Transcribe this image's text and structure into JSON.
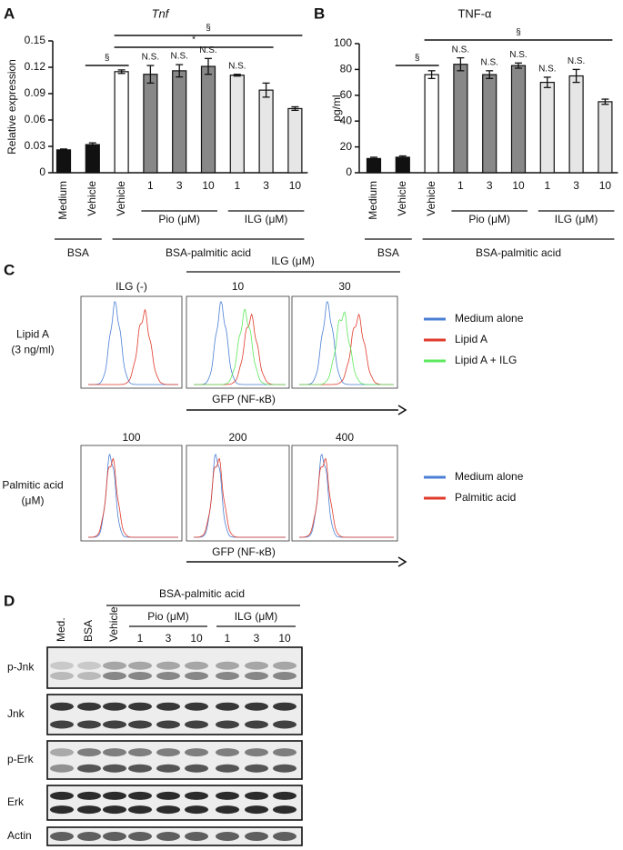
{
  "chart_data": [
    {
      "type": "bar",
      "panel": "A",
      "title": "Tnf",
      "ylabel": "Relative expression",
      "categories": [
        "Medium",
        "Vehicle",
        "Vehicle",
        "1",
        "3",
        "10",
        "1",
        "3",
        "10"
      ],
      "values": [
        0.026,
        0.032,
        0.115,
        0.112,
        0.116,
        0.121,
        0.111,
        0.094,
        0.073
      ],
      "errors": [
        0.001,
        0.002,
        0.002,
        0.01,
        0.007,
        0.009,
        0.001,
        0.008,
        0.002
      ],
      "colors": [
        "#111111",
        "#111111",
        "#ffffff",
        "#888888",
        "#888888",
        "#888888",
        "#e6e6e6",
        "#e6e6e6",
        "#e6e6e6"
      ],
      "ns_labels": [
        null,
        null,
        null,
        "N.S.",
        "N.S.",
        "N.S.",
        "N.S.",
        null,
        null
      ],
      "brackets": [
        {
          "label": "§"
        },
        {
          "label": "*"
        },
        {
          "label": "§"
        }
      ],
      "groups": [
        {
          "label": "BSA"
        },
        {
          "label": "Pio (μM)"
        },
        {
          "label": "ILG (μM)"
        },
        {
          "label": "BSA-palmitic acid"
        }
      ],
      "ylim": [
        0,
        0.15
      ],
      "yticks": [
        0,
        0.03,
        0.06,
        0.09,
        0.12,
        0.15
      ]
    },
    {
      "type": "bar",
      "panel": "B",
      "title": "TNF-α",
      "ylabel": "pg/ml",
      "categories": [
        "Medium",
        "Vehicle",
        "Vehicle",
        "1",
        "3",
        "10",
        "1",
        "3",
        "10"
      ],
      "values": [
        11,
        12,
        76,
        84,
        76,
        83,
        70,
        75,
        55
      ],
      "errors": [
        1,
        1,
        3,
        5,
        3,
        2,
        4,
        5,
        2
      ],
      "colors": [
        "#111111",
        "#111111",
        "#ffffff",
        "#888888",
        "#888888",
        "#888888",
        "#e6e6e6",
        "#e6e6e6",
        "#e6e6e6"
      ],
      "ns_labels": [
        null,
        null,
        null,
        "N.S.",
        "N.S.",
        "N.S.",
        "N.S.",
        "N.S.",
        null
      ],
      "brackets": [
        {
          "label": "§"
        },
        {
          "label": "§"
        }
      ],
      "groups": [
        {
          "label": "BSA"
        },
        {
          "label": "Pio (μM)"
        },
        {
          "label": "ILG (μM)"
        },
        {
          "label": "BSA-palmitic acid"
        }
      ],
      "ylim": [
        0,
        100
      ],
      "yticks": [
        0,
        20,
        40,
        60,
        80,
        100
      ]
    }
  ],
  "panel_c": {
    "panel": "C",
    "header": "ILG (μM)",
    "rows": [
      {
        "label": [
          "Lipid A",
          "(3 ng/ml)"
        ],
        "columns": [
          "ILG (-)",
          "10",
          "30"
        ],
        "xlabel": "GFP (NF-κB)",
        "legend": [
          "Medium alone",
          "Lipid A",
          "Lipid A + ILG"
        ]
      },
      {
        "label": [
          "Palmitic acid",
          "(μM)"
        ],
        "columns": [
          "100",
          "200",
          "400"
        ],
        "xlabel": "GFP (NF-κB)",
        "legend": [
          "Medium alone",
          "Palmitic acid"
        ]
      }
    ]
  },
  "panel_d": {
    "panel": "D",
    "header": "BSA-palmitic acid",
    "lanes": [
      "Med.",
      "BSA",
      "Vehicle"
    ],
    "groups": [
      {
        "label": "Pio (μM)",
        "doses": [
          "1",
          "3",
          "10"
        ]
      },
      {
        "label": "ILG (μM)",
        "doses": [
          "1",
          "3",
          "10"
        ]
      }
    ],
    "rows": [
      "p-Jnk",
      "Jnk",
      "p-Erk",
      "Erk",
      "Actin"
    ]
  }
}
